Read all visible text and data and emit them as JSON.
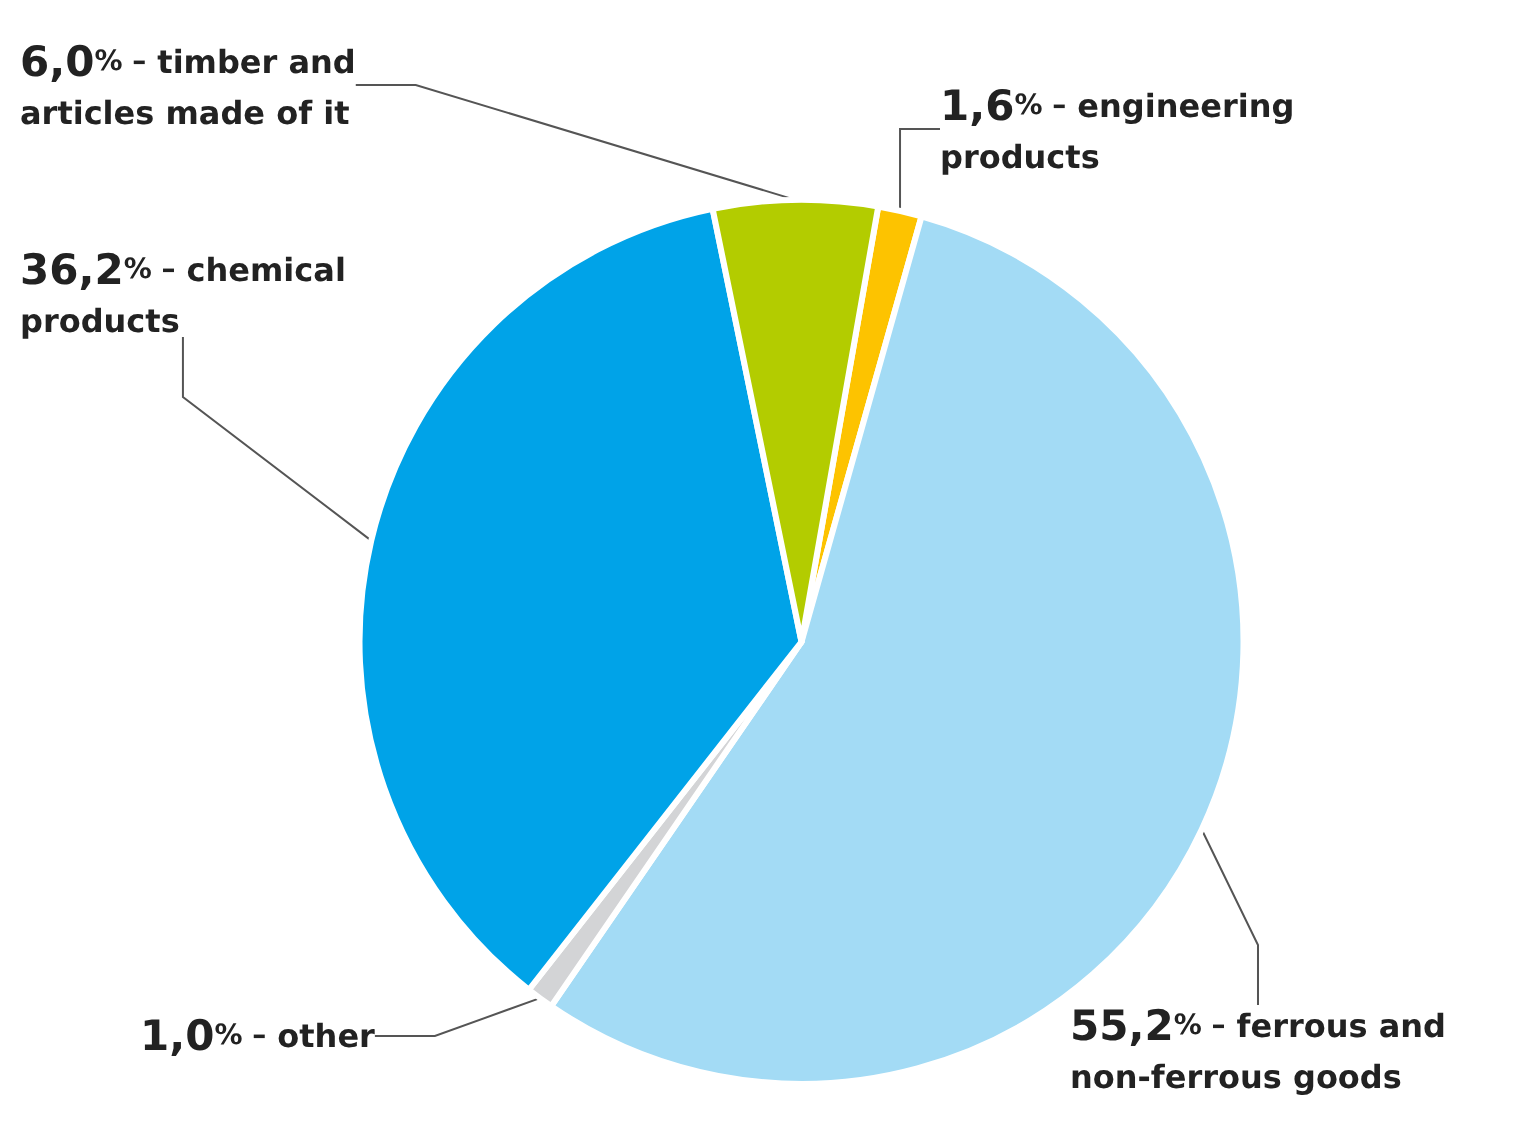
{
  "chart_data": {
    "type": "pie",
    "categories": [
      "engineering products",
      "ferrous and non-ferrous goods",
      "other",
      "chemical products",
      "timber and articles made of it"
    ],
    "values": [
      1.6,
      55.2,
      1.0,
      36.2,
      6.0
    ],
    "value_labels": [
      "1,6% –",
      "55,2% –",
      "1,0% –",
      "36,2% –",
      "6,0% –"
    ],
    "colors": [
      "#fdc300",
      "#a3dbf5",
      "#d3d4d6",
      "#00a3e8",
      "#b3cc00"
    ],
    "legend": false
  }
}
